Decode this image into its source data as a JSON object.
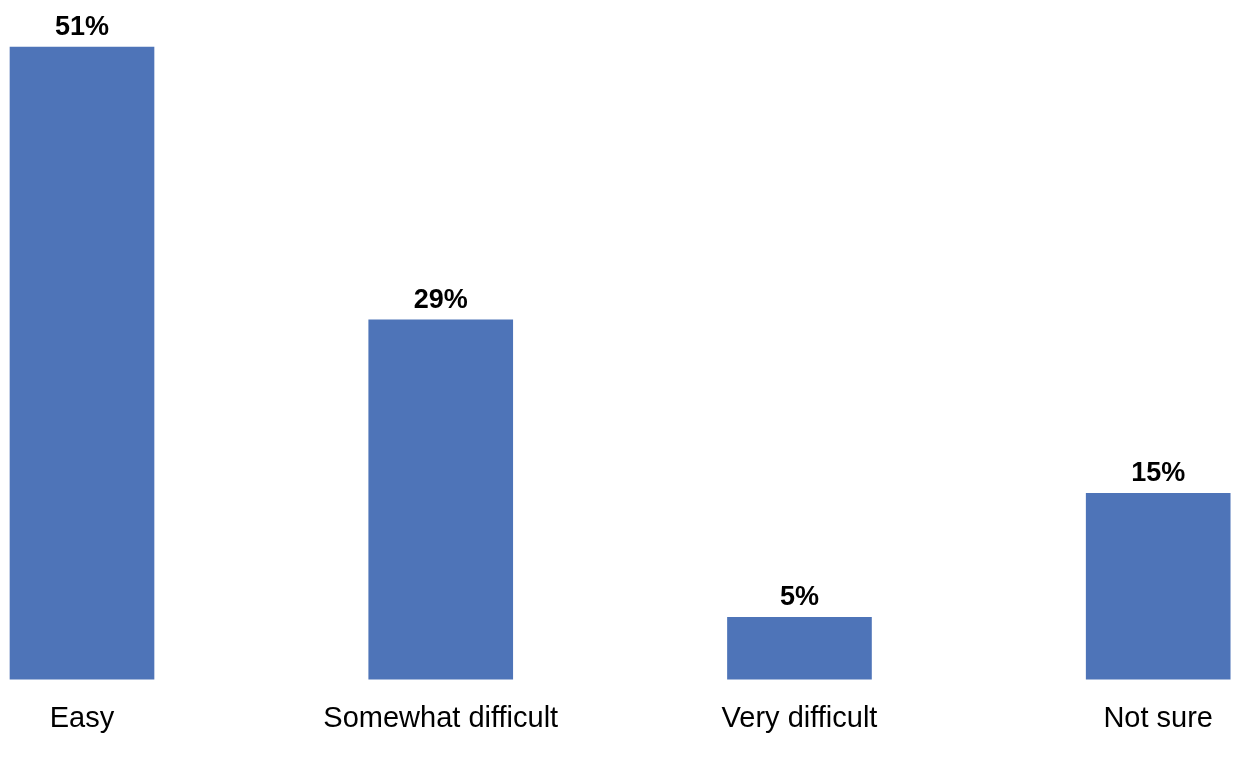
{
  "chart_data": {
    "type": "bar",
    "categories": [
      "Easy",
      "Somewhat difficult",
      "Very difficult",
      "Not sure"
    ],
    "values": [
      51,
      29,
      5,
      15
    ],
    "value_labels": [
      "51%",
      "29%",
      "5%",
      "15%"
    ],
    "color": "#4e74b8",
    "grid": false,
    "legend": false
  }
}
